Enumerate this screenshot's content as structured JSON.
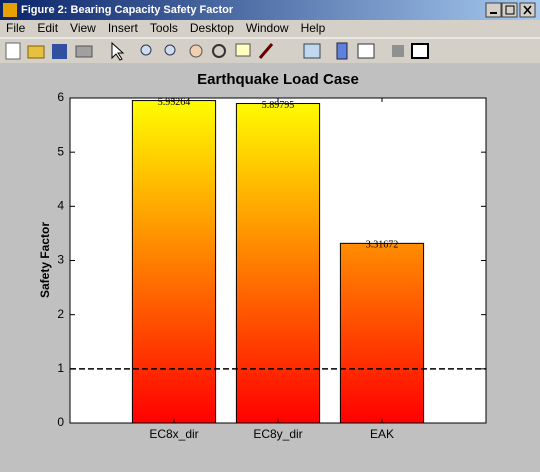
{
  "window": {
    "title": "Figure 2: Bearing Capacity Safety Factor",
    "menu": [
      "File",
      "Edit",
      "View",
      "Insert",
      "Tools",
      "Desktop",
      "Window",
      "Help"
    ]
  },
  "chart_data": {
    "type": "bar",
    "title": "Earthquake Load Case",
    "y_label": "Safety Factor",
    "categories": [
      "EC8x_dir",
      "EC8y_dir",
      "EAK"
    ],
    "values": [
      5.95264,
      5.89795,
      3.31672
    ],
    "colormap": [
      "#ffff00",
      "#ff0000"
    ],
    "ylim": [
      0,
      6
    ],
    "yticks": [
      0,
      1,
      2,
      3,
      4,
      5,
      6
    ],
    "reference_line": 1
  }
}
